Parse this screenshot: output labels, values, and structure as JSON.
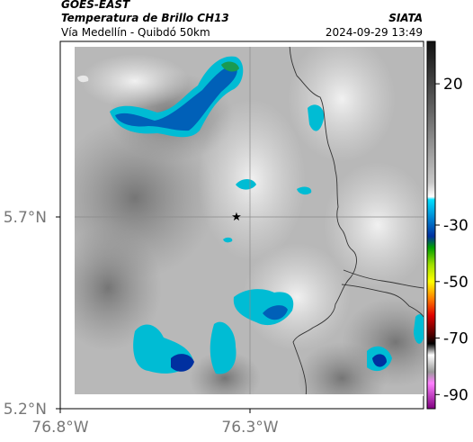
{
  "header": {
    "satellite": "GOES-EAST",
    "product": "Temperatura de Brillo CH13",
    "region": "Vía Medellín - Quibdó 50km",
    "org": "SIATA",
    "datetime": "2024-09-29 13:49"
  },
  "axes": {
    "x_ticks": [
      {
        "value": -76.8,
        "label": "76.8°W"
      },
      {
        "value": -76.3,
        "label": "76.3°W"
      }
    ],
    "y_ticks": [
      {
        "value": 5.7,
        "label": "5.7°N"
      },
      {
        "value": 5.2,
        "label": "5.2°N"
      }
    ],
    "xlim": [
      -76.8,
      -76.0
    ],
    "ylim": [
      5.2,
      6.0
    ],
    "grid": true
  },
  "colorbar": {
    "ticks": [
      {
        "value": 20,
        "label": "20"
      },
      {
        "value": -30,
        "label": "-30"
      },
      {
        "value": -50,
        "label": "-50"
      },
      {
        "value": -70,
        "label": "-70"
      },
      {
        "value": -90,
        "label": "-90"
      }
    ],
    "range": [
      -95,
      35
    ],
    "stops": [
      {
        "value": 35,
        "color": "#111111"
      },
      {
        "value": 10,
        "color": "#666666"
      },
      {
        "value": -15,
        "color": "#c8c8c8"
      },
      {
        "value": -20,
        "color": "#ffffff"
      },
      {
        "value": -21,
        "color": "#00e0ff"
      },
      {
        "value": -28,
        "color": "#0080d0"
      },
      {
        "value": -34,
        "color": "#0030a0"
      },
      {
        "value": -38,
        "color": "#00a000"
      },
      {
        "value": -44,
        "color": "#a0e000"
      },
      {
        "value": -50,
        "color": "#ffff00"
      },
      {
        "value": -56,
        "color": "#ff8000"
      },
      {
        "value": -62,
        "color": "#e00000"
      },
      {
        "value": -68,
        "color": "#600000"
      },
      {
        "value": -72,
        "color": "#000000"
      },
      {
        "value": -76,
        "color": "#ffffff"
      },
      {
        "value": -82,
        "color": "#999999"
      },
      {
        "value": -86,
        "color": "#ff80ff"
      },
      {
        "value": -95,
        "color": "#800080"
      }
    ]
  },
  "marker": {
    "symbol": "★",
    "lon": -76.34,
    "lat": 5.7
  }
}
